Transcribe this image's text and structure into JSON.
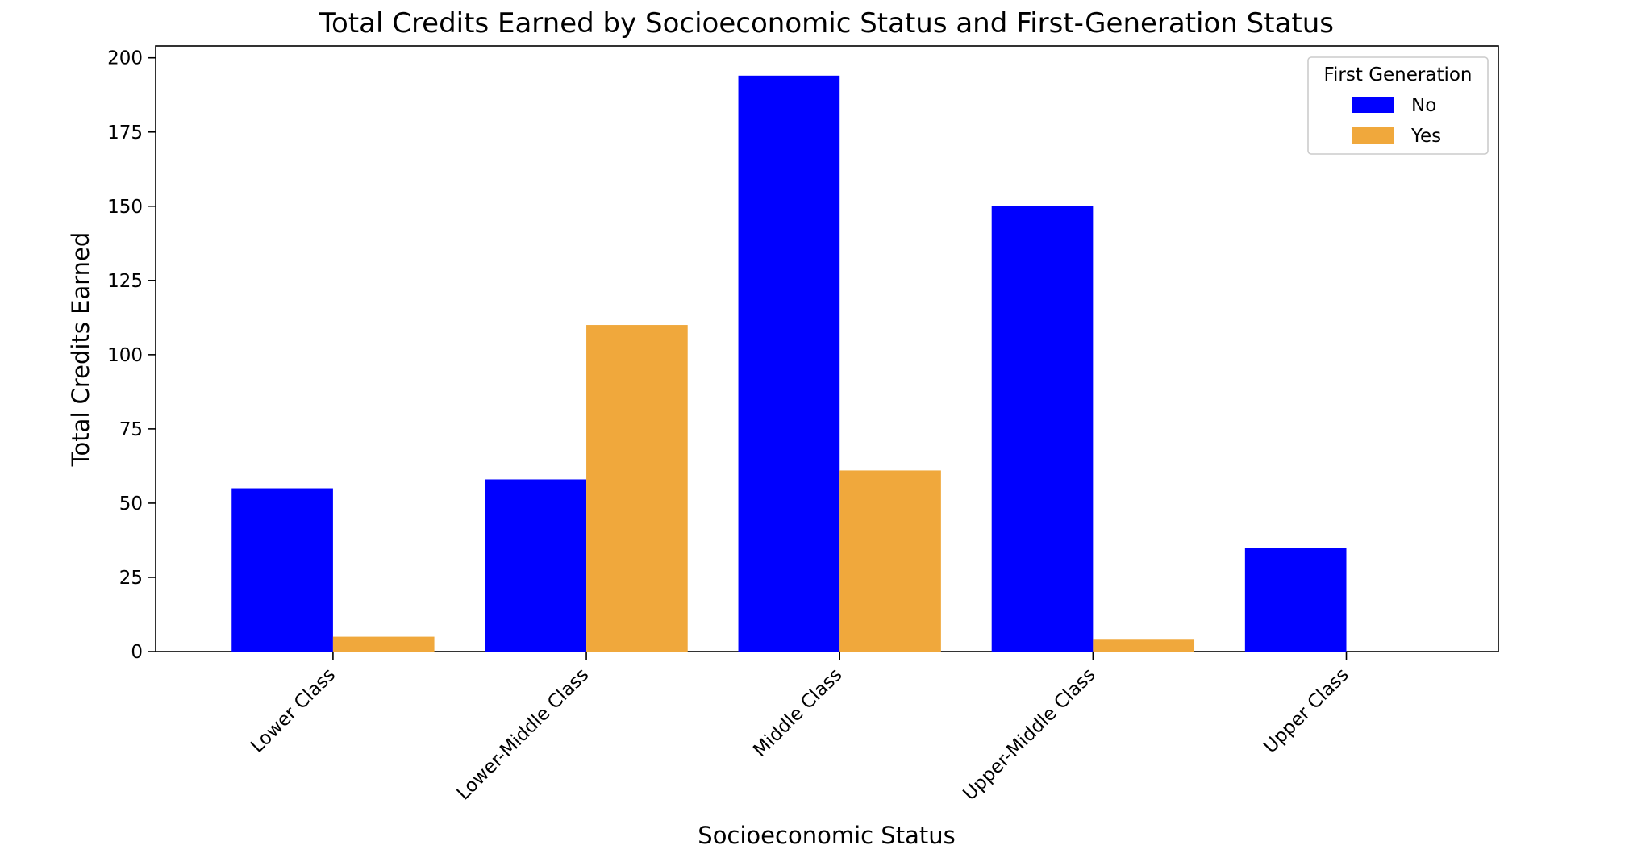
{
  "chart_data": {
    "type": "bar",
    "title": "Total Credits Earned by Socioeconomic Status and First-Generation Status",
    "xlabel": "Socioeconomic Status",
    "ylabel": "Total Credits Earned",
    "categories": [
      "Lower Class",
      "Lower-Middle Class",
      "Middle Class",
      "Upper-Middle Class",
      "Upper Class"
    ],
    "series": [
      {
        "name": "No",
        "values": [
          55,
          58,
          194,
          150,
          35
        ],
        "color": "#0000ff"
      },
      {
        "name": "Yes",
        "values": [
          5,
          110,
          61,
          4,
          0
        ],
        "color": "#f0a83c"
      }
    ],
    "ylim": [
      0,
      204
    ],
    "yticks": [
      0,
      25,
      50,
      75,
      100,
      125,
      150,
      175,
      200
    ],
    "grid": false,
    "legend": {
      "title": "First Generation",
      "position": "top-right"
    }
  }
}
